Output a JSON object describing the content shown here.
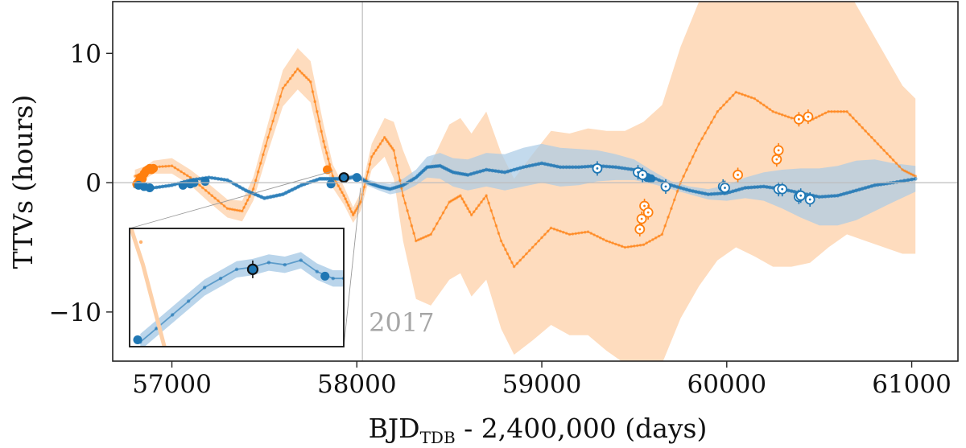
{
  "chart_data": {
    "type": "scatter",
    "xlabel_main": "BJD",
    "xlabel_sub": "TDB",
    "xlabel_rest": " - 2,400,000 (days)",
    "ylabel": "TTVs (hours)",
    "xlim": [
      56680,
      61250
    ],
    "ylim": [
      -13.8,
      14.0
    ],
    "x_ticks": [
      57000,
      58000,
      59000,
      60000,
      61000
    ],
    "x_tick_labels": [
      "57000",
      "58000",
      "59000",
      "60000",
      "61000"
    ],
    "y_ticks": [
      10,
      0,
      -10
    ],
    "y_tick_labels": [
      "10",
      "0",
      "−10"
    ],
    "reference_line_y": 0,
    "vline_x": 58030,
    "vline_label": "2017",
    "colors": {
      "blue": "#1f77b4",
      "orange": "#ff7f0e",
      "blue_band": "#a9cbe6",
      "orange_band": "#fdd0a8",
      "grey": "#bdbdbd"
    },
    "series": [
      {
        "color": "orange",
        "model": {
          "x": [
            56800,
            56860,
            56900,
            57000,
            57100,
            57200,
            57300,
            57380,
            57440,
            57520,
            57600,
            57680,
            57750,
            57820,
            57870,
            57930,
            57980,
            58020,
            58080,
            58150,
            58200,
            58250,
            58320,
            58400,
            58500,
            58560,
            58620,
            58700,
            58780,
            58850,
            58950,
            59050,
            59150,
            59250,
            59350,
            59450,
            59550,
            59650,
            59750,
            59850,
            59950,
            60050,
            60150,
            60250,
            60350,
            60450,
            60550,
            60650,
            60750,
            60850,
            60950,
            61020
          ],
          "y": [
            0.5,
            0.8,
            1.2,
            1.3,
            0.4,
            -0.8,
            -2.0,
            -2.2,
            -0.5,
            3.5,
            7.3,
            8.8,
            7.8,
            3.2,
            0.5,
            -1.0,
            -2.5,
            -1.5,
            2.0,
            3.5,
            2.5,
            -1.0,
            -4.5,
            -4.0,
            -1.5,
            -1.0,
            -2.5,
            -1.0,
            -4.5,
            -6.5,
            -5.0,
            -3.5,
            -4.0,
            -3.8,
            -4.5,
            -5.0,
            -4.8,
            -4.0,
            0.0,
            3.0,
            5.5,
            7.0,
            6.5,
            5.5,
            5.0,
            4.8,
            5.5,
            5.5,
            4.0,
            2.5,
            1.0,
            0.5
          ],
          "sigma": [
            0.5,
            0.5,
            0.5,
            0.6,
            0.6,
            0.7,
            0.7,
            0.8,
            0.9,
            1.1,
            1.4,
            1.6,
            1.6,
            1.3,
            0.9,
            0.7,
            0.6,
            0.7,
            1.0,
            1.5,
            2.2,
            3.5,
            4.5,
            5.5,
            6.0,
            6.0,
            6.3,
            6.5,
            6.8,
            6.8,
            7.2,
            7.5,
            7.8,
            8.0,
            8.5,
            9.0,
            9.5,
            10.0,
            10.5,
            11.0,
            11.5,
            12.0,
            12.2,
            12.0,
            11.5,
            11.0,
            10.5,
            9.5,
            8.5,
            7.5,
            6.5,
            6.0
          ]
        },
        "observed_filled": [
          {
            "x": 56810,
            "y": -0.1
          },
          {
            "x": 56820,
            "y": 0.1
          },
          {
            "x": 56830,
            "y": 0.4
          },
          {
            "x": 56840,
            "y": 0.3
          },
          {
            "x": 56850,
            "y": 0.7
          },
          {
            "x": 56860,
            "y": 0.9
          },
          {
            "x": 56870,
            "y": 1.0
          },
          {
            "x": 56880,
            "y": 1.1
          },
          {
            "x": 56890,
            "y": 1.0
          },
          {
            "x": 56900,
            "y": 1.1
          },
          {
            "x": 57840,
            "y": 1.0
          }
        ],
        "observed_open": [
          {
            "x": 59530,
            "y": -3.6
          },
          {
            "x": 59540,
            "y": -2.8
          },
          {
            "x": 59555,
            "y": -1.8
          },
          {
            "x": 59575,
            "y": -2.3
          },
          {
            "x": 60060,
            "y": 0.6
          },
          {
            "x": 60270,
            "y": 1.8
          },
          {
            "x": 60280,
            "y": 2.5
          },
          {
            "x": 60390,
            "y": 4.9
          },
          {
            "x": 60440,
            "y": 5.1
          }
        ]
      },
      {
        "color": "blue",
        "model": {
          "x": [
            56800,
            56900,
            57000,
            57100,
            57200,
            57300,
            57400,
            57500,
            57600,
            57700,
            57800,
            57870,
            57940,
            58000,
            58060,
            58120,
            58180,
            58250,
            58320,
            58380,
            58450,
            58520,
            58600,
            58700,
            58800,
            58900,
            59000,
            59100,
            59200,
            59300,
            59400,
            59500,
            59600,
            59700,
            59800,
            59900,
            60000,
            60100,
            60200,
            60300,
            60400,
            60500,
            60600,
            60700,
            60800,
            60900,
            61020
          ],
          "y": [
            -0.3,
            -0.4,
            -0.2,
            0.2,
            0.4,
            0.2,
            -0.6,
            -1.2,
            -0.9,
            -0.2,
            0.3,
            0.3,
            0.3,
            0.5,
            0.0,
            -0.3,
            -0.5,
            -0.2,
            0.4,
            1.2,
            1.3,
            0.8,
            0.6,
            1.0,
            0.8,
            1.2,
            1.5,
            1.2,
            1.2,
            1.3,
            1.2,
            1.0,
            0.4,
            -0.2,
            -0.6,
            -0.9,
            -0.8,
            -0.4,
            -0.3,
            -0.5,
            -0.8,
            -1.1,
            -1.0,
            -0.6,
            -0.2,
            0.0,
            0.3
          ],
          "sigma": [
            0.1,
            0.1,
            0.1,
            0.1,
            0.1,
            0.1,
            0.15,
            0.15,
            0.15,
            0.15,
            0.15,
            0.15,
            0.2,
            0.2,
            0.25,
            0.3,
            0.4,
            0.5,
            0.6,
            0.8,
            1.0,
            1.1,
            1.2,
            1.3,
            1.4,
            1.5,
            1.5,
            1.5,
            1.4,
            1.2,
            1.0,
            0.8,
            0.5,
            0.3,
            0.3,
            0.4,
            0.6,
            0.8,
            1.1,
            1.5,
            1.9,
            2.2,
            2.3,
            2.3,
            2.0,
            1.5,
            1.0
          ]
        },
        "observed_filled": [
          {
            "x": 56820,
            "y": -0.2
          },
          {
            "x": 56850,
            "y": -0.3
          },
          {
            "x": 56880,
            "y": -0.4
          },
          {
            "x": 57060,
            "y": -0.2
          },
          {
            "x": 57100,
            "y": -0.1
          },
          {
            "x": 57120,
            "y": 0.0
          },
          {
            "x": 57180,
            "y": 0.1
          },
          {
            "x": 57860,
            "y": -0.1
          },
          {
            "x": 58000,
            "y": 0.4
          },
          {
            "x": 59570,
            "y": 0.4
          },
          {
            "x": 59590,
            "y": 0.3
          }
        ],
        "observed_highlight": [
          {
            "x": 57930,
            "y": 0.4
          }
        ],
        "observed_open": [
          {
            "x": 59300,
            "y": 1.1
          },
          {
            "x": 59520,
            "y": 0.8
          },
          {
            "x": 59545,
            "y": 0.6
          },
          {
            "x": 59670,
            "y": -0.3
          },
          {
            "x": 59980,
            "y": -0.3
          },
          {
            "x": 59990,
            "y": -0.4
          },
          {
            "x": 60280,
            "y": -0.5
          },
          {
            "x": 60300,
            "y": -0.5
          },
          {
            "x": 60390,
            "y": -1.1
          },
          {
            "x": 60400,
            "y": -1.0
          },
          {
            "x": 60450,
            "y": -1.3
          }
        ]
      }
    ],
    "inset": {
      "xlim": [
        57700,
        58100
      ],
      "ylim": [
        -1.3,
        1.3
      ],
      "blue_model": [
        {
          "x": 57720,
          "y": -1.2
        },
        {
          "x": 57750,
          "y": -0.9
        },
        {
          "x": 57780,
          "y": -0.6
        },
        {
          "x": 57810,
          "y": -0.3
        },
        {
          "x": 57840,
          "y": 0.0
        },
        {
          "x": 57870,
          "y": 0.2
        },
        {
          "x": 57900,
          "y": 0.4
        },
        {
          "x": 57930,
          "y": 0.45
        },
        {
          "x": 57960,
          "y": 0.55
        },
        {
          "x": 57990,
          "y": 0.5
        },
        {
          "x": 58020,
          "y": 0.6
        },
        {
          "x": 58050,
          "y": 0.35
        },
        {
          "x": 58080,
          "y": 0.2
        },
        {
          "x": 58100,
          "y": 0.2
        }
      ],
      "orange_model": [
        {
          "x": 57700,
          "y": 1.4
        },
        {
          "x": 57725,
          "y": 0.5
        },
        {
          "x": 57745,
          "y": -0.4
        },
        {
          "x": 57765,
          "y": -1.3
        }
      ],
      "blue_points": [
        {
          "x": 57715,
          "y": -1.15
        },
        {
          "x": 58065,
          "y": 0.25
        }
      ],
      "highlight_point": {
        "x": 57930,
        "y": 0.4
      }
    }
  }
}
